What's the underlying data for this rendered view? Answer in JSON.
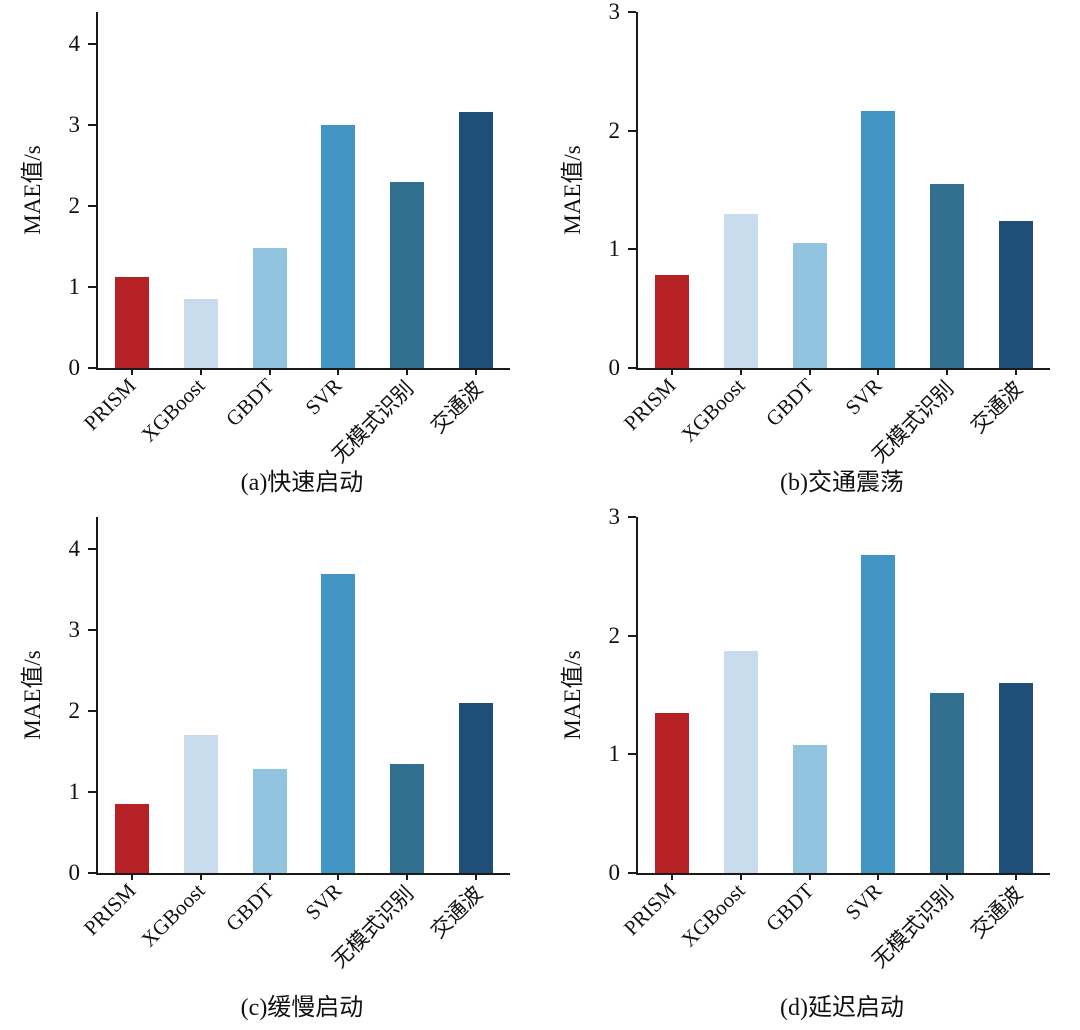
{
  "categories": [
    "PRISM",
    "XGBoost",
    "GBDT",
    "SVR",
    "无模式识别",
    "交通波"
  ],
  "bar_colors": [
    "#b62126",
    "#c9dcee",
    "#92c3df",
    "#4295c5",
    "#31708f",
    "#1f4e79"
  ],
  "axis_color": "#1a1a1a",
  "chart_data": [
    {
      "type": "bar",
      "title": "(a)快速启动",
      "xlabel": "",
      "ylabel": "MAE值/s",
      "categories": [
        "PRISM",
        "XGBoost",
        "GBDT",
        "SVR",
        "无模式识别",
        "交通波"
      ],
      "values": [
        1.12,
        0.85,
        1.48,
        3.0,
        2.3,
        3.17
      ],
      "ylim": [
        0,
        4.4
      ],
      "yticks": [
        0,
        1,
        2,
        3,
        4
      ],
      "grid": false,
      "legend": "none"
    },
    {
      "type": "bar",
      "title": "(b)交通震荡",
      "xlabel": "",
      "ylabel": "MAE值/s",
      "categories": [
        "PRISM",
        "XGBoost",
        "GBDT",
        "SVR",
        "无模式识别",
        "交通波"
      ],
      "values": [
        0.78,
        1.3,
        1.05,
        2.17,
        1.55,
        1.24
      ],
      "ylim": [
        0,
        3
      ],
      "yticks": [
        0,
        1,
        2,
        3
      ],
      "grid": false,
      "legend": "none"
    },
    {
      "type": "bar",
      "title": "(c)缓慢启动",
      "xlabel": "",
      "ylabel": "MAE值/s",
      "categories": [
        "PRISM",
        "XGBoost",
        "GBDT",
        "SVR",
        "无模式识别",
        "交通波"
      ],
      "values": [
        0.85,
        1.7,
        1.28,
        3.7,
        1.35,
        2.1
      ],
      "ylim": [
        0,
        4.4
      ],
      "yticks": [
        0,
        1,
        2,
        3,
        4
      ],
      "grid": false,
      "legend": "none"
    },
    {
      "type": "bar",
      "title": "(d)延迟启动",
      "xlabel": "",
      "ylabel": "MAE值/s",
      "categories": [
        "PRISM",
        "XGBoost",
        "GBDT",
        "SVR",
        "无模式识别",
        "交通波"
      ],
      "values": [
        1.35,
        1.87,
        1.08,
        2.68,
        1.52,
        1.6
      ],
      "ylim": [
        0,
        3
      ],
      "yticks": [
        0,
        1,
        2,
        3
      ],
      "grid": false,
      "legend": "none"
    }
  ]
}
